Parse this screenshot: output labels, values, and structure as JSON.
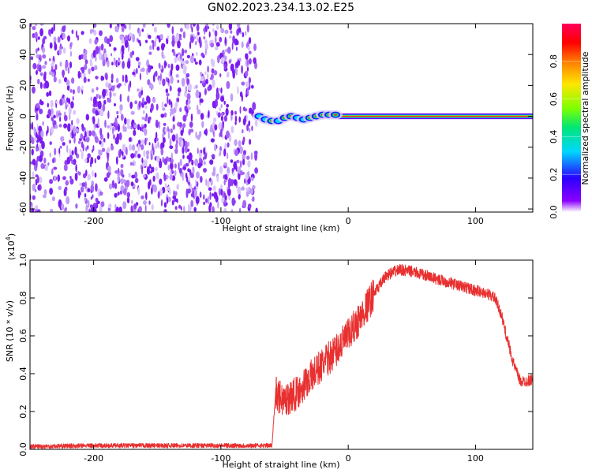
{
  "figure_title": "GN02.2023.234.13.02.E25",
  "colors": {
    "spectrogram_noise": "#7a1cf0",
    "snr_line": "#e83030",
    "colorbar_stops": [
      "#ffffff",
      "#8b00ff",
      "#2b00ff",
      "#00d7ff",
      "#00e676",
      "#7cff00",
      "#ffe600",
      "#ff7a00",
      "#ff0000",
      "#ff005a"
    ]
  },
  "chart_data": [
    {
      "type": "heatmap",
      "title": "",
      "xlabel": "Height of straight line (km)",
      "ylabel": "Frequency (Hz)",
      "xlim": [
        -250,
        145
      ],
      "ylim": [
        -62,
        60
      ],
      "x_ticks": [
        -200,
        -100,
        0,
        100
      ],
      "y_ticks": [
        -60,
        -40,
        -20,
        0,
        20,
        40,
        60
      ],
      "x_tick_labels": [
        "-200",
        "-100",
        "0",
        "100"
      ],
      "y_tick_labels": [
        "-60",
        "-40",
        "-20",
        "0",
        "20",
        "40",
        "60"
      ],
      "noise_region_x": [
        -250,
        -72
      ],
      "noise_level": 0.12,
      "signal_track": [
        {
          "x": -70,
          "f": 0,
          "amp": 0.45
        },
        {
          "x": -65,
          "f": -2,
          "amp": 0.55
        },
        {
          "x": -60,
          "f": -3,
          "amp": 0.7
        },
        {
          "x": -55,
          "f": -3,
          "amp": 0.6
        },
        {
          "x": -50,
          "f": -1,
          "amp": 0.8
        },
        {
          "x": -45,
          "f": 0,
          "amp": 0.65
        },
        {
          "x": -40,
          "f": -1,
          "amp": 0.55
        },
        {
          "x": -35,
          "f": -2,
          "amp": 0.6
        },
        {
          "x": -30,
          "f": -1,
          "amp": 0.7
        },
        {
          "x": -25,
          "f": 0,
          "amp": 0.75
        },
        {
          "x": -20,
          "f": 1,
          "amp": 0.8
        },
        {
          "x": -15,
          "f": 1,
          "amp": 0.85
        },
        {
          "x": -10,
          "f": 1,
          "amp": 0.9
        },
        {
          "x": -5,
          "f": 0,
          "amp": 0.7
        },
        {
          "x": 0,
          "f": 0,
          "amp": 1.0
        },
        {
          "x": 145,
          "f": 0,
          "amp": 1.0
        }
      ],
      "steady_line": {
        "x_start": -8,
        "x_end": 145,
        "f": 0,
        "amp": 1.0
      },
      "colorbar": {
        "label": "Normalized spectral amplitude",
        "range": [
          0,
          1
        ],
        "ticks": [
          0.0,
          0.2,
          0.4,
          0.6,
          0.8
        ],
        "tick_labels": [
          "0.0",
          "0.2",
          "0.4",
          "0.6",
          "0.8"
        ]
      }
    },
    {
      "type": "line",
      "title": "",
      "xlabel": "Height of straight line (km)",
      "ylabel": "SNR (10 * v/v)",
      "multiplier_label": "(x10",
      "multiplier_exp": "4",
      "multiplier_close": ")",
      "xlim": [
        -250,
        145
      ],
      "ylim": [
        0,
        1.0
      ],
      "x_ticks": [
        -200,
        -100,
        0,
        100
      ],
      "y_ticks": [
        0.0,
        0.2,
        0.4,
        0.6,
        0.8,
        1.0
      ],
      "x_tick_labels": [
        "-200",
        "-100",
        "0",
        "100"
      ],
      "y_tick_labels": [
        "0.0",
        "0.2",
        "0.4",
        "0.6",
        "0.8",
        "1.0"
      ],
      "series": [
        {
          "x": [
            -250,
            -200,
            -150,
            -100,
            -60,
            -57,
            -55,
            -50,
            -40,
            -30,
            -20,
            -10,
            0,
            10,
            20,
            30,
            40,
            50,
            60,
            70,
            80,
            90,
            100,
            110,
            115,
            120,
            125,
            130,
            135,
            140,
            145
          ],
          "y": [
            0.015,
            0.02,
            0.02,
            0.02,
            0.02,
            0.3,
            0.28,
            0.26,
            0.3,
            0.38,
            0.45,
            0.52,
            0.6,
            0.7,
            0.82,
            0.92,
            0.95,
            0.94,
            0.92,
            0.9,
            0.88,
            0.86,
            0.84,
            0.82,
            0.8,
            0.72,
            0.58,
            0.45,
            0.36,
            0.36,
            0.37
          ]
        }
      ]
    }
  ]
}
